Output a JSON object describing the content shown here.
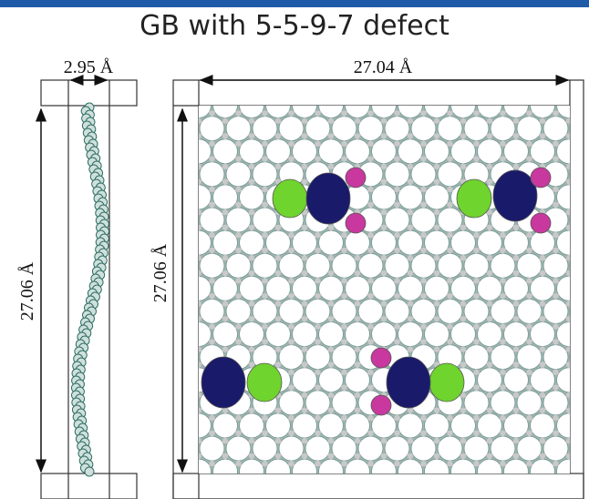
{
  "title": "GB with 5-5-9-7 defect",
  "side_view": {
    "width_label": "2.95 Å",
    "height_label": "27.06 Å"
  },
  "top_view": {
    "width_label": "27.04 Å",
    "height_label": "27.06 Å"
  }
}
